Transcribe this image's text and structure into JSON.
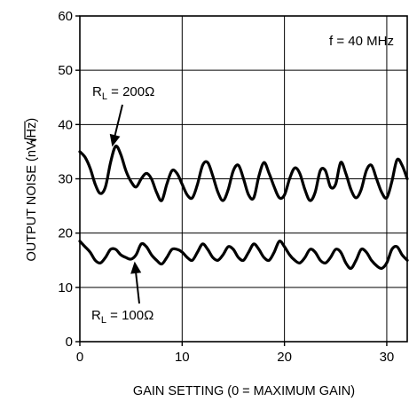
{
  "chart_data": {
    "type": "line",
    "title": "",
    "xlabel": "GAIN SETTING (0 = MAXIMUM GAIN)",
    "ylabel_main": "OUTPUT NOISE (nV/",
    "ylabel_root": "Hz",
    "ylabel_close": ")",
    "xlim": [
      0,
      32
    ],
    "ylim": [
      0,
      60
    ],
    "xticks": [
      0,
      10,
      20,
      30
    ],
    "yticks": [
      0,
      10,
      20,
      30,
      40,
      50,
      60
    ],
    "xtick_labels": [
      "0",
      "10",
      "20",
      "30"
    ],
    "ytick_labels": [
      "0",
      "10",
      "20",
      "30",
      "40",
      "50",
      "60"
    ],
    "grid": true,
    "condition_label": "f = 40 MHz",
    "series": [
      {
        "label_main": "R",
        "label_sub": "L",
        "label_value": " = 200Ω",
        "x": [
          0.0,
          0.5,
          1.0,
          1.5,
          2.0,
          2.5,
          3.0,
          3.5,
          4.0,
          4.5,
          5.0,
          5.5,
          6.0,
          6.5,
          7.0,
          7.5,
          8.0,
          8.5,
          9.0,
          9.5,
          10.0,
          10.5,
          11.0,
          11.5,
          12.0,
          12.5,
          13.0,
          13.5,
          14.0,
          14.5,
          15.0,
          15.5,
          16.0,
          16.5,
          17.0,
          17.5,
          18.0,
          18.5,
          19.0,
          19.5,
          20.0,
          20.5,
          21.0,
          21.5,
          22.0,
          22.5,
          23.0,
          23.5,
          24.0,
          24.5,
          25.0,
          25.5,
          26.0,
          26.5,
          27.0,
          27.5,
          28.0,
          28.5,
          29.0,
          29.5,
          30.0,
          30.5,
          31.0,
          31.5,
          32.0
        ],
        "y": [
          35.0,
          34.0,
          32.0,
          29.0,
          27.3,
          28.5,
          33.0,
          36.0,
          34.5,
          31.5,
          29.5,
          28.5,
          30.0,
          31.0,
          30.0,
          27.5,
          26.0,
          29.0,
          31.5,
          31.0,
          29.0,
          27.0,
          26.5,
          29.0,
          32.5,
          33.0,
          30.5,
          27.5,
          26.0,
          28.0,
          31.5,
          32.5,
          30.0,
          27.0,
          26.5,
          30.5,
          33.0,
          31.0,
          28.5,
          26.5,
          27.0,
          30.0,
          32.0,
          31.0,
          28.0,
          26.0,
          27.5,
          31.5,
          31.5,
          28.5,
          29.0,
          33.0,
          31.0,
          28.0,
          26.5,
          28.0,
          31.5,
          32.5,
          30.0,
          27.5,
          26.5,
          29.5,
          33.5,
          32.5,
          30.0
        ]
      },
      {
        "label_main": "R",
        "label_sub": "L",
        "label_value": " = 100Ω",
        "x": [
          0.0,
          0.5,
          1.0,
          1.5,
          2.0,
          2.5,
          3.0,
          3.5,
          4.0,
          4.5,
          5.0,
          5.5,
          6.0,
          6.5,
          7.0,
          7.5,
          8.0,
          8.5,
          9.0,
          9.5,
          10.0,
          10.5,
          11.0,
          11.5,
          12.0,
          12.5,
          13.0,
          13.5,
          14.0,
          14.5,
          15.0,
          15.5,
          16.0,
          16.5,
          17.0,
          17.5,
          18.0,
          18.5,
          19.0,
          19.5,
          20.0,
          20.5,
          21.0,
          21.5,
          22.0,
          22.5,
          23.0,
          23.5,
          24.0,
          24.5,
          25.0,
          25.5,
          26.0,
          26.5,
          27.0,
          27.5,
          28.0,
          28.5,
          29.0,
          29.5,
          30.0,
          30.5,
          31.0,
          31.5,
          32.0
        ],
        "y": [
          18.5,
          17.5,
          16.5,
          15.0,
          14.5,
          15.5,
          17.0,
          17.0,
          16.0,
          15.5,
          15.2,
          16.0,
          18.0,
          17.5,
          16.0,
          15.0,
          14.3,
          15.5,
          17.0,
          17.0,
          16.5,
          15.5,
          15.0,
          16.5,
          18.0,
          17.0,
          15.5,
          15.0,
          16.0,
          17.5,
          17.0,
          15.5,
          15.0,
          16.5,
          18.0,
          17.0,
          15.5,
          15.0,
          16.5,
          18.5,
          17.5,
          16.0,
          15.0,
          14.5,
          15.5,
          17.0,
          16.5,
          15.0,
          14.5,
          15.5,
          17.0,
          16.5,
          14.5,
          13.5,
          15.0,
          17.0,
          16.5,
          15.0,
          14.0,
          13.5,
          14.5,
          17.0,
          17.5,
          16.0,
          15.0
        ]
      }
    ]
  }
}
